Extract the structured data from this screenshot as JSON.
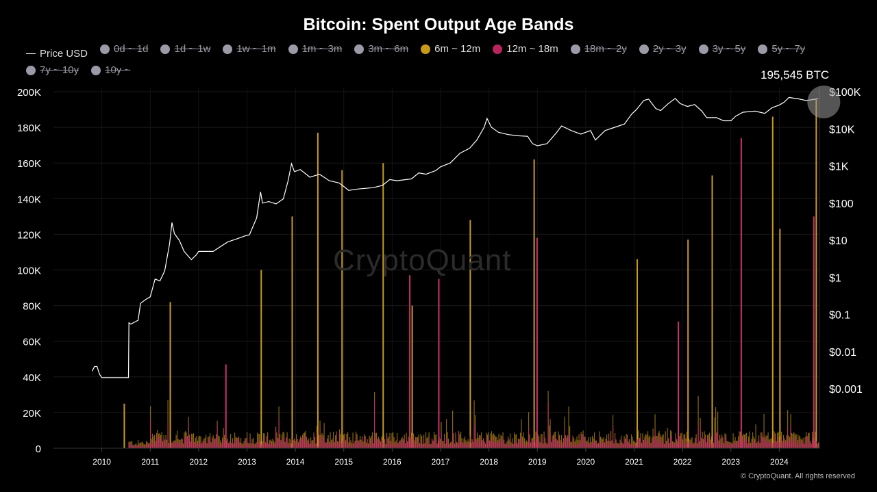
{
  "chart_data": {
    "type": "area",
    "title": "Bitcoin: Spent Output Age Bands",
    "legend": [
      {
        "name": "Price USD",
        "color": "#ffffff",
        "marker": "line",
        "active": true
      },
      {
        "name": "0d ~ 1d",
        "color": "#9c9aa6",
        "active": false
      },
      {
        "name": "1d ~ 1w",
        "color": "#9c9aa6",
        "active": false
      },
      {
        "name": "1w ~ 1m",
        "color": "#9c9aa6",
        "active": false
      },
      {
        "name": "1m ~ 3m",
        "color": "#9c9aa6",
        "active": false
      },
      {
        "name": "3m ~ 6m",
        "color": "#9c9aa6",
        "active": false
      },
      {
        "name": "6m ~ 12m",
        "color": "#c99a1a",
        "active": true
      },
      {
        "name": "12m ~ 18m",
        "color": "#b8245e",
        "active": true
      },
      {
        "name": "18m ~ 2y",
        "color": "#9c9aa6",
        "active": false
      },
      {
        "name": "2y ~ 3y",
        "color": "#9c9aa6",
        "active": false
      },
      {
        "name": "3y ~ 5y",
        "color": "#9c9aa6",
        "active": false
      },
      {
        "name": "5y ~ 7y",
        "color": "#9c9aa6",
        "active": false
      },
      {
        "name": "7y ~ 10y",
        "color": "#9c9aa6",
        "active": false
      },
      {
        "name": "10y ~",
        "color": "#9c9aa6",
        "active": false
      }
    ],
    "x_ticks": [
      "2010",
      "2011",
      "2012",
      "2013",
      "2014",
      "2015",
      "2016",
      "2017",
      "2018",
      "2019",
      "2020",
      "2021",
      "2022",
      "2023",
      "2024"
    ],
    "xlim": [
      2009.0,
      2024.83
    ],
    "y_left_ticks": [
      "0",
      "20K",
      "40K",
      "60K",
      "80K",
      "100K",
      "120K",
      "140K",
      "160K",
      "180K",
      "200K"
    ],
    "y_left_values": [
      0,
      20000,
      40000,
      60000,
      80000,
      100000,
      120000,
      140000,
      160000,
      180000,
      200000
    ],
    "ylim_left": [
      0,
      200000
    ],
    "y_right_ticks": [
      "$0.001",
      "$0.01",
      "$0.1",
      "$1",
      "$10",
      "$100",
      "$1K",
      "$10K",
      "$100K"
    ],
    "y_right_values": [
      0.001,
      0.01,
      0.1,
      1,
      10,
      100,
      1000,
      10000,
      100000
    ],
    "ylim_right_log10": [
      -4.6,
      5.0
    ],
    "y_right_scale": "log",
    "grid": true,
    "legend_position": "top-left",
    "annotation": {
      "text": "195,545 BTC",
      "x": 2024.75,
      "y": 195545
    },
    "price_usd": [
      [
        2009.8,
        0.003
      ],
      [
        2009.85,
        0.004
      ],
      [
        2009.9,
        0.004
      ],
      [
        2009.95,
        0.0025
      ],
      [
        2010.0,
        0.002
      ],
      [
        2010.3,
        0.002
      ],
      [
        2010.55,
        0.002
      ],
      [
        2010.56,
        0.06
      ],
      [
        2010.6,
        0.055
      ],
      [
        2010.75,
        0.07
      ],
      [
        2010.8,
        0.2
      ],
      [
        2010.9,
        0.25
      ],
      [
        2011.0,
        0.3
      ],
      [
        2011.1,
        0.9
      ],
      [
        2011.2,
        0.8
      ],
      [
        2011.3,
        1.5
      ],
      [
        2011.4,
        8
      ],
      [
        2011.45,
        30
      ],
      [
        2011.5,
        15
      ],
      [
        2011.6,
        10
      ],
      [
        2011.7,
        5
      ],
      [
        2011.85,
        3
      ],
      [
        2011.95,
        4
      ],
      [
        2012.0,
        5
      ],
      [
        2012.3,
        5
      ],
      [
        2012.6,
        9
      ],
      [
        2012.8,
        11
      ],
      [
        2012.95,
        13
      ],
      [
        2013.05,
        14
      ],
      [
        2013.2,
        40
      ],
      [
        2013.28,
        200
      ],
      [
        2013.32,
        100
      ],
      [
        2013.45,
        110
      ],
      [
        2013.6,
        95
      ],
      [
        2013.75,
        130
      ],
      [
        2013.85,
        400
      ],
      [
        2013.92,
        1150
      ],
      [
        2013.98,
        700
      ],
      [
        2014.1,
        800
      ],
      [
        2014.3,
        500
      ],
      [
        2014.5,
        600
      ],
      [
        2014.7,
        400
      ],
      [
        2014.9,
        350
      ],
      [
        2015.0,
        280
      ],
      [
        2015.1,
        220
      ],
      [
        2015.3,
        240
      ],
      [
        2015.6,
        260
      ],
      [
        2015.8,
        300
      ],
      [
        2015.95,
        430
      ],
      [
        2016.1,
        400
      ],
      [
        2016.4,
        450
      ],
      [
        2016.55,
        650
      ],
      [
        2016.7,
        600
      ],
      [
        2016.9,
        750
      ],
      [
        2017.0,
        950
      ],
      [
        2017.2,
        1200
      ],
      [
        2017.4,
        2200
      ],
      [
        2017.6,
        3000
      ],
      [
        2017.75,
        5000
      ],
      [
        2017.9,
        11000
      ],
      [
        2017.96,
        19000
      ],
      [
        2018.05,
        11000
      ],
      [
        2018.2,
        8000
      ],
      [
        2018.4,
        7000
      ],
      [
        2018.6,
        6500
      ],
      [
        2018.8,
        6300
      ],
      [
        2018.9,
        4000
      ],
      [
        2019.0,
        3500
      ],
      [
        2019.2,
        4000
      ],
      [
        2019.4,
        8000
      ],
      [
        2019.5,
        12000
      ],
      [
        2019.7,
        9000
      ],
      [
        2019.9,
        7200
      ],
      [
        2020.1,
        9000
      ],
      [
        2020.2,
        5000
      ],
      [
        2020.4,
        9000
      ],
      [
        2020.6,
        11000
      ],
      [
        2020.8,
        13500
      ],
      [
        2020.95,
        25000
      ],
      [
        2021.05,
        33000
      ],
      [
        2021.2,
        58000
      ],
      [
        2021.3,
        63000
      ],
      [
        2021.45,
        35000
      ],
      [
        2021.55,
        31000
      ],
      [
        2021.7,
        47000
      ],
      [
        2021.85,
        66000
      ],
      [
        2021.95,
        48000
      ],
      [
        2022.1,
        40000
      ],
      [
        2022.25,
        45000
      ],
      [
        2022.4,
        30000
      ],
      [
        2022.5,
        20000
      ],
      [
        2022.7,
        20000
      ],
      [
        2022.85,
        16500
      ],
      [
        2023.0,
        16500
      ],
      [
        2023.1,
        22000
      ],
      [
        2023.25,
        28000
      ],
      [
        2023.5,
        30000
      ],
      [
        2023.7,
        26000
      ],
      [
        2023.85,
        37000
      ],
      [
        2024.0,
        44000
      ],
      [
        2024.1,
        52000
      ],
      [
        2024.2,
        70000
      ],
      [
        2024.4,
        64000
      ],
      [
        2024.55,
        58000
      ],
      [
        2024.65,
        60000
      ],
      [
        2024.75,
        63000
      ],
      [
        2024.8,
        66000
      ]
    ],
    "notable_spikes": {
      "6m_12m": [
        [
          2010.45,
          25000
        ],
        [
          2011.4,
          82000
        ],
        [
          2013.28,
          100000
        ],
        [
          2013.92,
          130000
        ],
        [
          2014.45,
          177000
        ],
        [
          2014.95,
          156000
        ],
        [
          2015.8,
          160000
        ],
        [
          2016.4,
          80000
        ],
        [
          2017.6,
          128000
        ],
        [
          2018.92,
          162000
        ],
        [
          2021.05,
          106000
        ],
        [
          2022.1,
          117000
        ],
        [
          2022.6,
          153000
        ],
        [
          2023.85,
          186000
        ],
        [
          2024.0,
          123000
        ],
        [
          2024.75,
          195545
        ]
      ],
      "12m_18m": [
        [
          2012.55,
          47000
        ],
        [
          2016.35,
          97000
        ],
        [
          2016.95,
          95000
        ],
        [
          2018.98,
          118000
        ],
        [
          2021.9,
          71000
        ],
        [
          2023.2,
          174000
        ],
        [
          2024.7,
          130000
        ]
      ]
    }
  }
}
